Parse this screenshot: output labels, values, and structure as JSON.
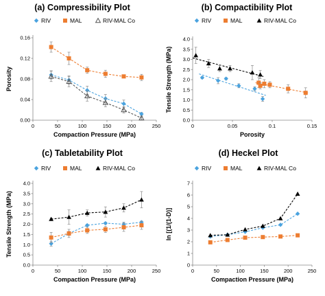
{
  "chart_data": [
    {
      "type": "scatter",
      "title": "(a) Compressibility Plot",
      "xlabel": "Compaction Pressure (MPa)",
      "ylabel": "Porosity",
      "xlim": [
        0,
        250
      ],
      "ylim": [
        0,
        0.16
      ],
      "xticks": [
        "0",
        "50",
        "100",
        "150",
        "200",
        "250"
      ],
      "yticks": [
        "0.00",
        "0.04",
        "0.08",
        "0.12",
        "0.16"
      ],
      "legend": [
        "RIV",
        "MAL",
        "RIV-MAL Co"
      ],
      "series": [
        {
          "name": "RIV",
          "color": "#4aa3df",
          "marker": "diamond",
          "x": [
            37,
            73,
            110,
            147,
            184,
            220
          ],
          "y": [
            0.088,
            0.078,
            0.058,
            0.042,
            0.032,
            0.012
          ],
          "err": [
            0.008,
            0.008,
            0.008,
            0.008,
            0.007,
            0.003
          ]
        },
        {
          "name": "MAL",
          "color": "#ed7d31",
          "marker": "square",
          "x": [
            37,
            73,
            110,
            147,
            184,
            220
          ],
          "y": [
            0.142,
            0.12,
            0.097,
            0.09,
            0.085,
            0.083
          ],
          "err": [
            0.01,
            0.012,
            0.006,
            0.007,
            0.003,
            0.006
          ]
        },
        {
          "name": "RIV-MAL Co",
          "color": "#555555",
          "marker": "triangle-open",
          "x": [
            37,
            73,
            110,
            147,
            184,
            220
          ],
          "y": [
            0.085,
            0.075,
            0.047,
            0.034,
            0.02,
            0.004
          ],
          "err": [
            0.01,
            0.01,
            0.01,
            0.008,
            0.006,
            0.003
          ]
        }
      ]
    },
    {
      "type": "scatter",
      "title": "(b) Compactibility Plot",
      "xlabel": "Porosity",
      "ylabel": "Tensile Strength (MPa)",
      "xlim": [
        0,
        0.15
      ],
      "ylim": [
        0,
        4.0
      ],
      "xticks": [
        "0",
        "0.05",
        "0.1",
        "0.15"
      ],
      "yticks": [
        "0.0",
        "0.5",
        "1.0",
        "1.5",
        "2.0",
        "2.5",
        "3.0",
        "3.5",
        "4.0"
      ],
      "legend": [
        "RIV",
        "MAL",
        "RIV-MAL Co"
      ],
      "series": [
        {
          "name": "RIV",
          "color": "#4aa3df",
          "marker": "diamond",
          "x": [
            0.012,
            0.032,
            0.042,
            0.058,
            0.078,
            0.088
          ],
          "y": [
            2.1,
            1.95,
            2.05,
            1.7,
            1.55,
            1.05
          ],
          "err": [
            0.05,
            0.15,
            0.05,
            0.1,
            0.1,
            0.12
          ]
        },
        {
          "name": "MAL",
          "color": "#ed7d31",
          "marker": "square",
          "x": [
            0.083,
            0.085,
            0.09,
            0.097,
            0.12,
            0.142
          ],
          "y": [
            1.85,
            1.7,
            1.8,
            1.75,
            1.55,
            1.35
          ],
          "err": [
            0.25,
            0.15,
            0.2,
            0.15,
            0.2,
            0.25
          ]
        },
        {
          "name": "RIV-MAL Co",
          "color": "#000000",
          "marker": "triangle",
          "x": [
            0.004,
            0.02,
            0.034,
            0.047,
            0.075,
            0.085
          ],
          "y": [
            3.2,
            2.8,
            2.55,
            2.55,
            2.35,
            2.25
          ],
          "err": [
            0.4,
            0.2,
            0.15,
            0.15,
            0.35,
            0.2
          ]
        }
      ]
    },
    {
      "type": "scatter",
      "title": "(c) Tabletability Plot",
      "xlabel": "Compaction Pressure (MPa)",
      "ylabel": "Tensile Strength (MPa)",
      "xlim": [
        0,
        250
      ],
      "ylim": [
        0,
        4.0
      ],
      "xticks": [
        "0",
        "50",
        "100",
        "150",
        "200",
        "250"
      ],
      "yticks": [
        "0.0",
        "0.5",
        "1.0",
        "1.5",
        "2.0",
        "2.5",
        "3.0",
        "3.5",
        "4.0"
      ],
      "legend": [
        "RIV",
        "MAL",
        "RIV-MAL Co"
      ],
      "series": [
        {
          "name": "RIV",
          "color": "#4aa3df",
          "marker": "diamond",
          "x": [
            37,
            73,
            110,
            147,
            184,
            220
          ],
          "y": [
            1.05,
            1.55,
            1.95,
            2.05,
            2.0,
            2.1
          ],
          "err": [
            0.12,
            0.1,
            0.05,
            0.05,
            0.1,
            0.05
          ]
        },
        {
          "name": "MAL",
          "color": "#ed7d31",
          "marker": "square",
          "x": [
            37,
            73,
            110,
            147,
            184,
            220
          ],
          "y": [
            1.35,
            1.55,
            1.7,
            1.75,
            1.85,
            1.95
          ],
          "err": [
            0.25,
            0.2,
            0.15,
            0.15,
            0.2,
            0.2
          ]
        },
        {
          "name": "RIV-MAL Co",
          "color": "#000000",
          "marker": "triangle",
          "x": [
            37,
            73,
            110,
            147,
            184,
            220
          ],
          "y": [
            2.25,
            2.35,
            2.55,
            2.6,
            2.8,
            3.2
          ],
          "err": [
            0.05,
            0.35,
            0.15,
            0.25,
            0.2,
            0.4
          ]
        }
      ]
    },
    {
      "type": "scatter",
      "title": "(d) Heckel Plot",
      "xlabel": "Compaction Pressure (MPa)",
      "ylabel": "ln [(1/(1-D)]",
      "xlim": [
        0,
        250
      ],
      "ylim": [
        0,
        7
      ],
      "xticks": [
        "0",
        "50",
        "100",
        "150",
        "200",
        "250"
      ],
      "yticks": [
        "0",
        "1",
        "2",
        "3",
        "4",
        "5",
        "6",
        "7"
      ],
      "legend": [
        "RIV",
        "MAL",
        "RIV-MAL Co"
      ],
      "series": [
        {
          "name": "RIV",
          "color": "#4aa3df",
          "marker": "diamond",
          "x": [
            37,
            73,
            110,
            147,
            184,
            220
          ],
          "y": [
            2.45,
            2.6,
            2.85,
            3.2,
            3.45,
            4.4
          ],
          "err": [
            0,
            0,
            0,
            0,
            0,
            0
          ]
        },
        {
          "name": "MAL",
          "color": "#ed7d31",
          "marker": "square",
          "x": [
            37,
            73,
            110,
            147,
            184,
            220
          ],
          "y": [
            1.95,
            2.15,
            2.35,
            2.4,
            2.45,
            2.55
          ],
          "err": [
            0,
            0,
            0,
            0,
            0,
            0
          ]
        },
        {
          "name": "RIV-MAL Co",
          "color": "#000000",
          "marker": "triangle",
          "x": [
            37,
            73,
            110,
            147,
            184,
            220
          ],
          "y": [
            2.55,
            2.6,
            3.05,
            3.35,
            4.0,
            6.1
          ],
          "err": [
            0,
            0,
            0,
            0,
            0,
            0
          ]
        }
      ]
    }
  ]
}
